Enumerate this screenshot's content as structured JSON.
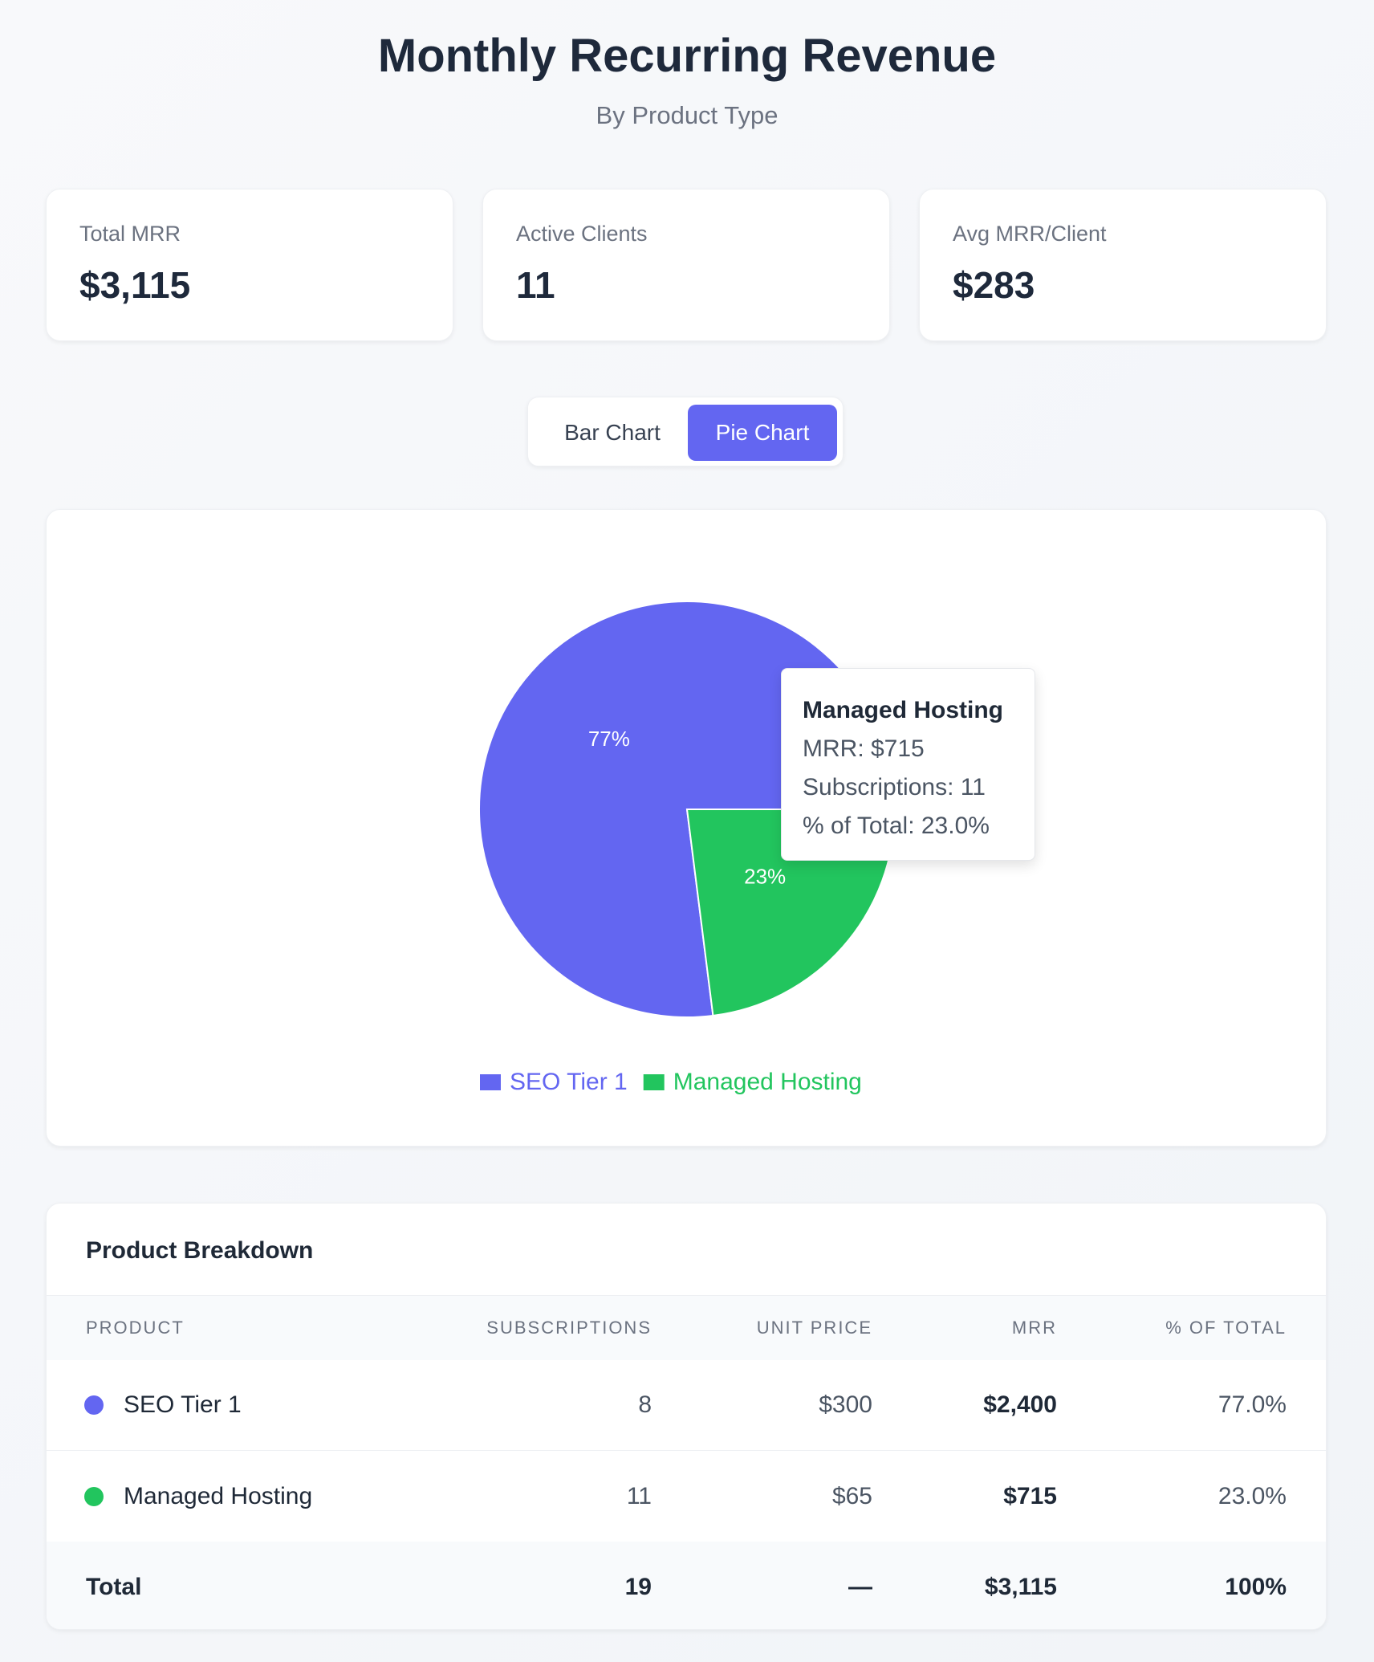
{
  "header": {
    "title": "Monthly Recurring Revenue",
    "subtitle": "By Product Type"
  },
  "kpis": [
    {
      "label": "Total MRR",
      "value": "$3,115"
    },
    {
      "label": "Active Clients",
      "value": "11"
    },
    {
      "label": "Avg MRR/Client",
      "value": "$283"
    }
  ],
  "toggle": {
    "buttons": [
      "Bar Chart",
      "Pie Chart"
    ],
    "active": 1
  },
  "chart_data": {
    "type": "pie",
    "categories": [
      "SEO Tier 1",
      "Managed Hosting"
    ],
    "values": [
      77,
      23
    ],
    "value_labels": [
      "77%",
      "23%"
    ],
    "colors": [
      "#6366f1",
      "#22c55e"
    ]
  },
  "tooltip": {
    "title": "Managed Hosting",
    "lines": [
      "MRR: $715",
      "Subscriptions: 11",
      "% of Total: 23.0%"
    ]
  },
  "table": {
    "title": "Product Breakdown",
    "columns": [
      "PRODUCT",
      "SUBSCRIPTIONS",
      "UNIT PRICE",
      "MRR",
      "% OF TOTAL"
    ],
    "rows": [
      [
        "SEO Tier 1",
        "8",
        "$300",
        "$2,400",
        "77.0%"
      ],
      [
        "Managed Hosting",
        "11",
        "$65",
        "$715",
        "23.0%"
      ]
    ],
    "total": [
      "Total",
      "19",
      "—",
      "$3,115",
      "100%"
    ]
  }
}
